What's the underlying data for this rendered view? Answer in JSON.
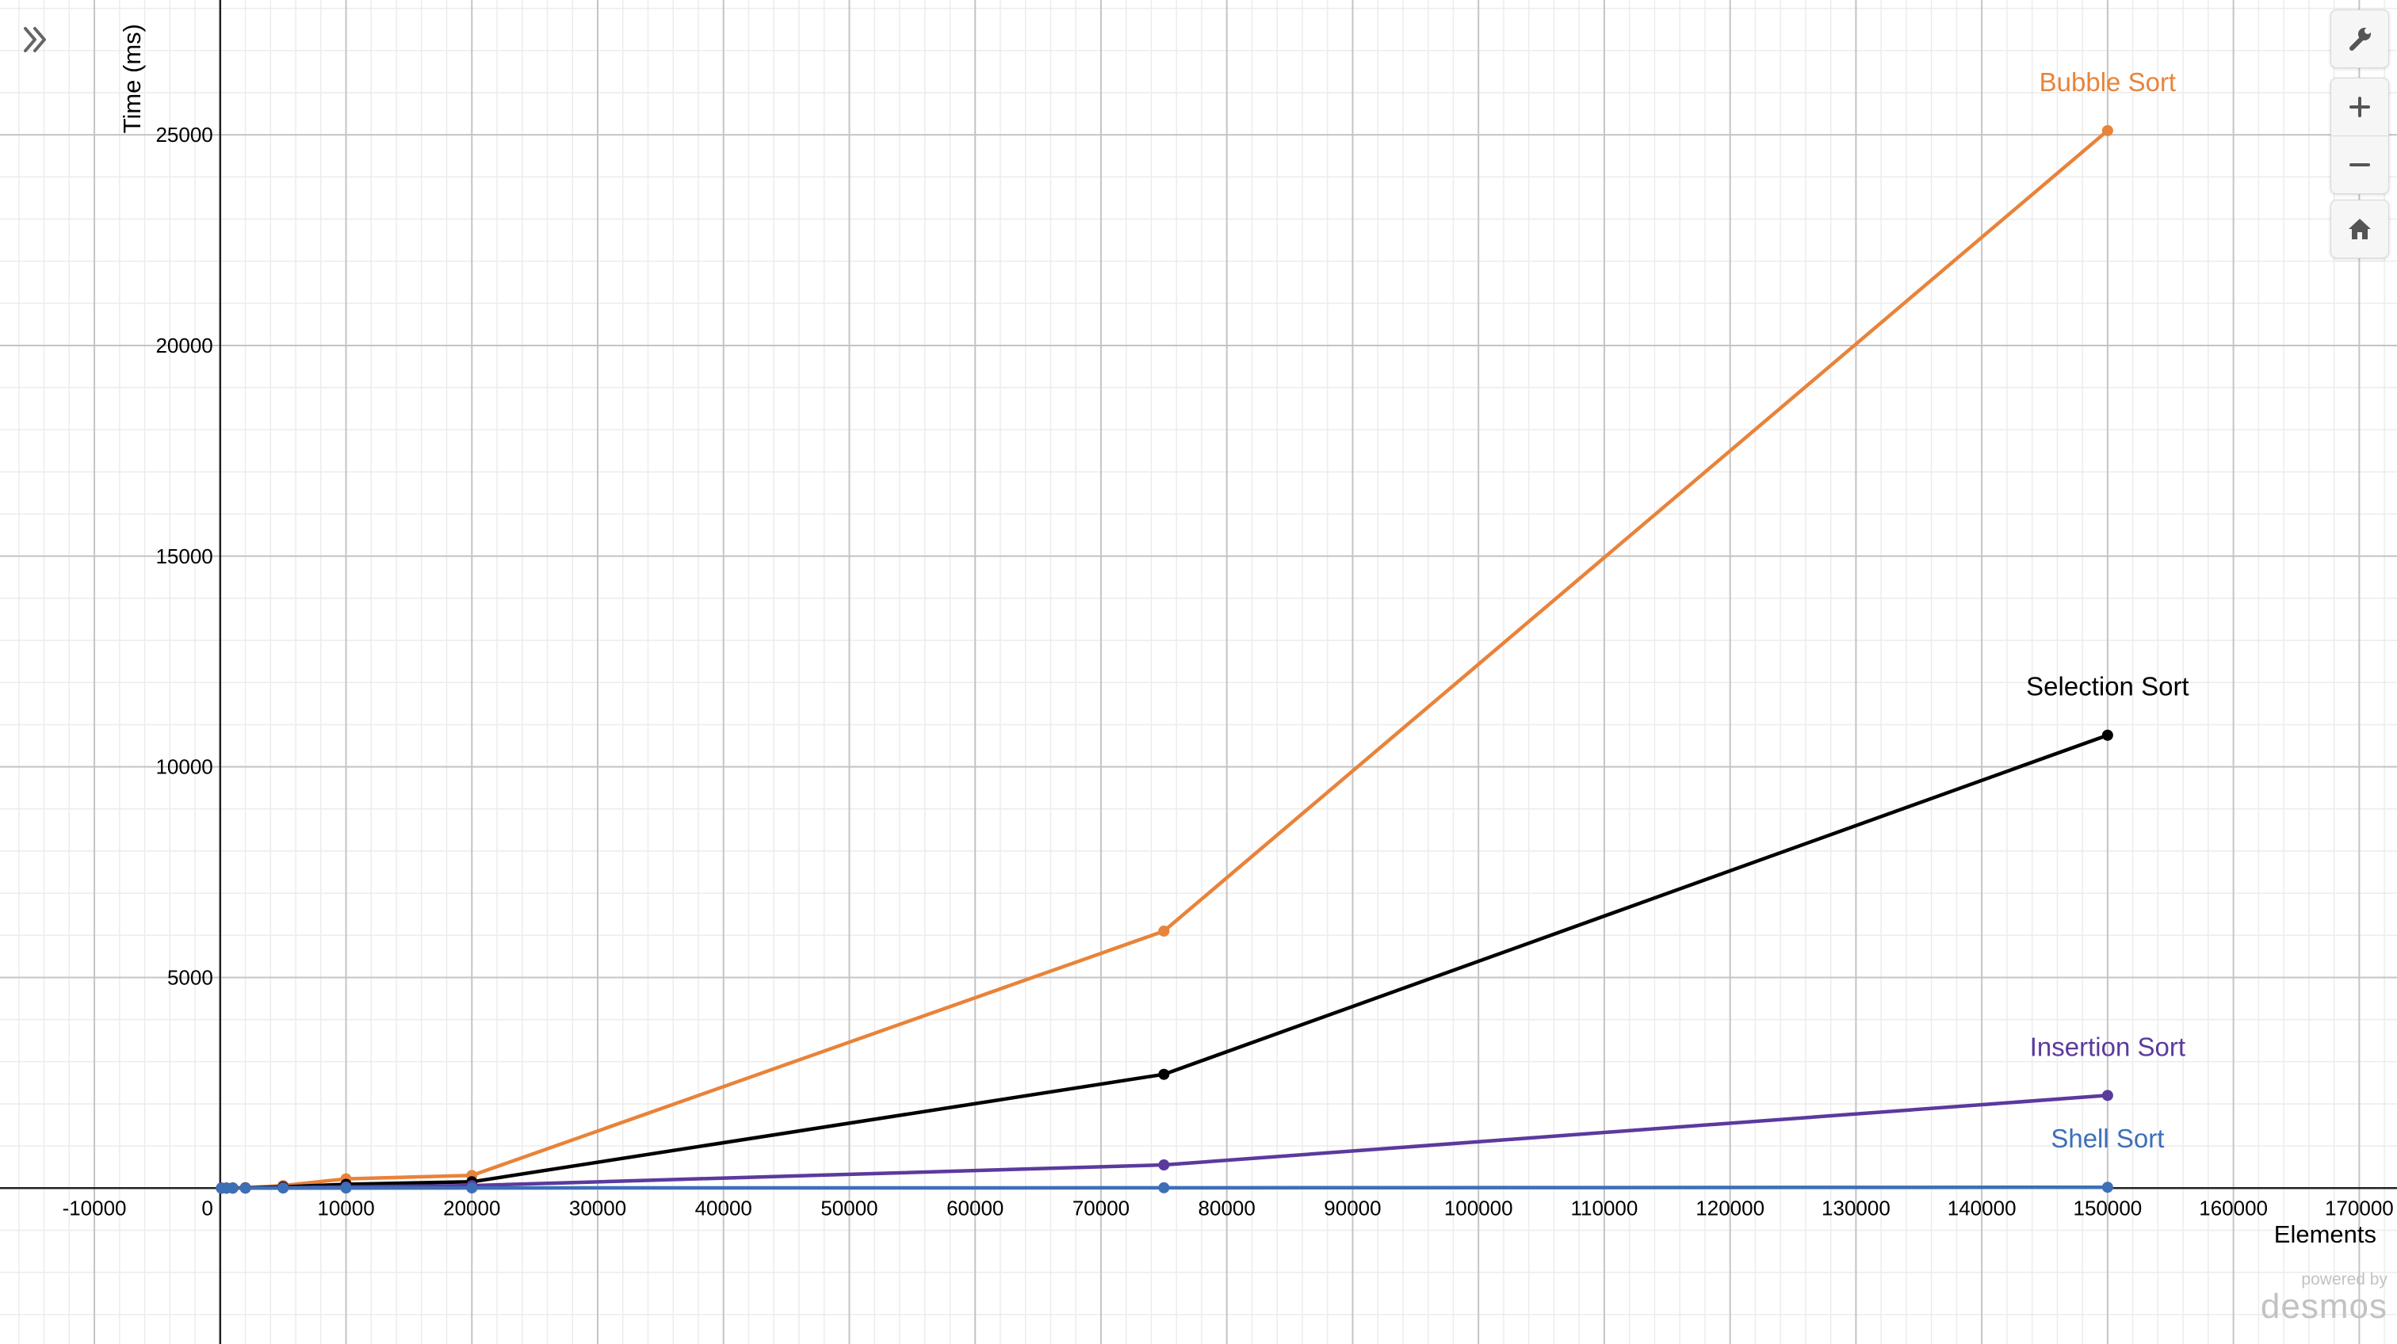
{
  "controls": {
    "expand_icon": "double-chevron-right-icon",
    "settings_icon": "wrench-icon",
    "zoom_in_icon": "plus-icon",
    "zoom_out_icon": "minus-icon",
    "home_icon": "home-icon"
  },
  "watermark": {
    "line1": "powered by",
    "line2": "desmos"
  },
  "chart_data": {
    "type": "line",
    "xlabel": "Elements",
    "ylabel": "Time (ms)",
    "xlim": [
      -17500,
      173000
    ],
    "ylim": [
      -3700,
      28200
    ],
    "x_ticks": [
      -10000,
      0,
      10000,
      20000,
      30000,
      40000,
      50000,
      60000,
      70000,
      80000,
      90000,
      100000,
      110000,
      120000,
      130000,
      140000,
      150000,
      160000,
      170000
    ],
    "x_tick_labels": [
      "-10000",
      "0",
      "10000",
      "20000",
      "30000",
      "40000",
      "50000",
      "60000",
      "70000",
      "80000",
      "90000",
      "100000",
      "110000",
      "120000",
      "130000",
      "140000",
      "150000",
      "160000",
      "170000"
    ],
    "y_ticks": [
      5000,
      10000,
      15000,
      20000,
      25000
    ],
    "y_tick_labels": [
      "5000",
      "10000",
      "15000",
      "20000",
      "25000"
    ],
    "grid": true,
    "legend": "labels at series endpoints",
    "series": [
      {
        "name": "Bubble Sort",
        "color": "#e8833a",
        "x": [
          100,
          500,
          1000,
          2000,
          5000,
          10000,
          20000,
          75000,
          150000
        ],
        "y": [
          0,
          1,
          3,
          10,
          60,
          220,
          300,
          6100,
          25100
        ]
      },
      {
        "name": "Selection Sort",
        "color": "#000000",
        "x": [
          100,
          500,
          1000,
          2000,
          5000,
          10000,
          20000,
          75000,
          150000
        ],
        "y": [
          0,
          1,
          2,
          5,
          30,
          90,
          150,
          2700,
          10750
        ]
      },
      {
        "name": "Insertion Sort",
        "color": "#5b3a9e",
        "x": [
          100,
          500,
          1000,
          2000,
          5000,
          10000,
          20000,
          75000,
          150000
        ],
        "y": [
          0,
          0,
          1,
          2,
          10,
          30,
          60,
          550,
          2200
        ]
      },
      {
        "name": "Shell Sort",
        "color": "#3d6fb6",
        "x": [
          100,
          500,
          1000,
          2000,
          5000,
          10000,
          20000,
          75000,
          150000
        ],
        "y": [
          0,
          0,
          0,
          0,
          1,
          2,
          4,
          8,
          20
        ]
      }
    ]
  }
}
